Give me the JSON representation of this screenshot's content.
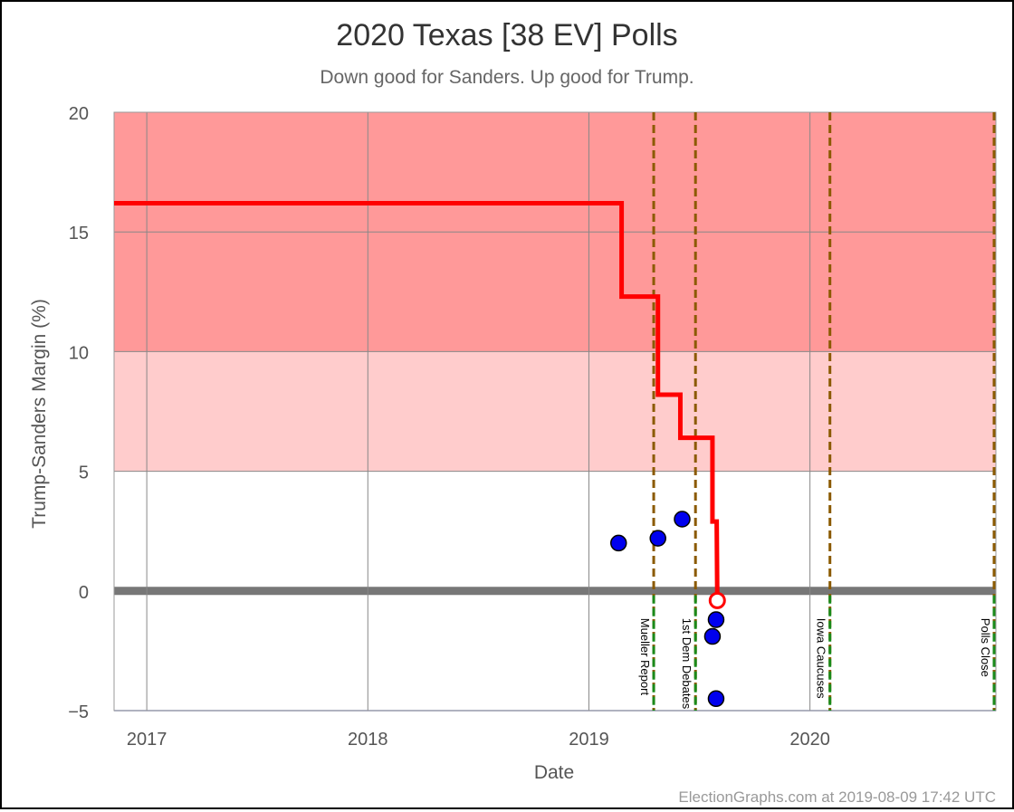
{
  "chart_data": {
    "type": "line",
    "title": "2020 Texas [38 EV] Polls",
    "subtitle": "Down good for Sanders. Up good for Trump.",
    "xlabel": "Date",
    "ylabel": "Trump-Sanders Margin (%)",
    "xlim": [
      "2016-11-08",
      "2020-11-03"
    ],
    "ylim": [
      -5,
      20
    ],
    "x_ticks": [
      "2017",
      "2018",
      "2019",
      "2020"
    ],
    "y_ticks": [
      "20",
      "15",
      "10",
      "5",
      "0",
      "−5"
    ],
    "grid": true,
    "bands": [
      {
        "from": 10,
        "to": 20,
        "color": "#ff9999"
      },
      {
        "from": 5,
        "to": 10,
        "color": "#ffcccc"
      }
    ],
    "events": [
      {
        "date": "2019-04-18",
        "label": "Mueller Report"
      },
      {
        "date": "2019-06-26",
        "label": "1st Dem Debates"
      },
      {
        "date": "2020-02-03",
        "label": "Iowa Caucuses"
      },
      {
        "date": "2020-11-03",
        "label": "Polls Close"
      }
    ],
    "series": [
      {
        "kind": "step-line",
        "color": "#ff0000",
        "points": [
          {
            "x": "2016-11-08",
            "y": 16.2
          },
          {
            "x": "2019-02-24",
            "y": 16.2
          },
          {
            "x": "2019-02-24",
            "y": 12.3
          },
          {
            "x": "2019-04-25",
            "y": 12.3
          },
          {
            "x": "2019-04-25",
            "y": 8.2
          },
          {
            "x": "2019-06-01",
            "y": 8.2
          },
          {
            "x": "2019-06-01",
            "y": 6.4
          },
          {
            "x": "2019-07-24",
            "y": 6.4
          },
          {
            "x": "2019-07-24",
            "y": 2.9
          },
          {
            "x": "2019-07-31",
            "y": 2.9
          },
          {
            "x": "2019-08-01",
            "y": -0.4
          }
        ]
      },
      {
        "kind": "points",
        "color": "#0000ee",
        "points": [
          {
            "x": "2019-02-19",
            "y": 2.0
          },
          {
            "x": "2019-04-25",
            "y": 2.2
          },
          {
            "x": "2019-06-04",
            "y": 3.0
          },
          {
            "x": "2019-07-24",
            "y": -1.9
          },
          {
            "x": "2019-07-30",
            "y": -1.2
          },
          {
            "x": "2019-07-30",
            "y": -4.5
          }
        ]
      },
      {
        "kind": "current",
        "color": "#ff0000",
        "points": [
          {
            "x": "2019-08-01",
            "y": -0.4
          }
        ]
      }
    ]
  },
  "footer": "ElectionGraphs.com at 2019-08-09 17:42 UTC"
}
